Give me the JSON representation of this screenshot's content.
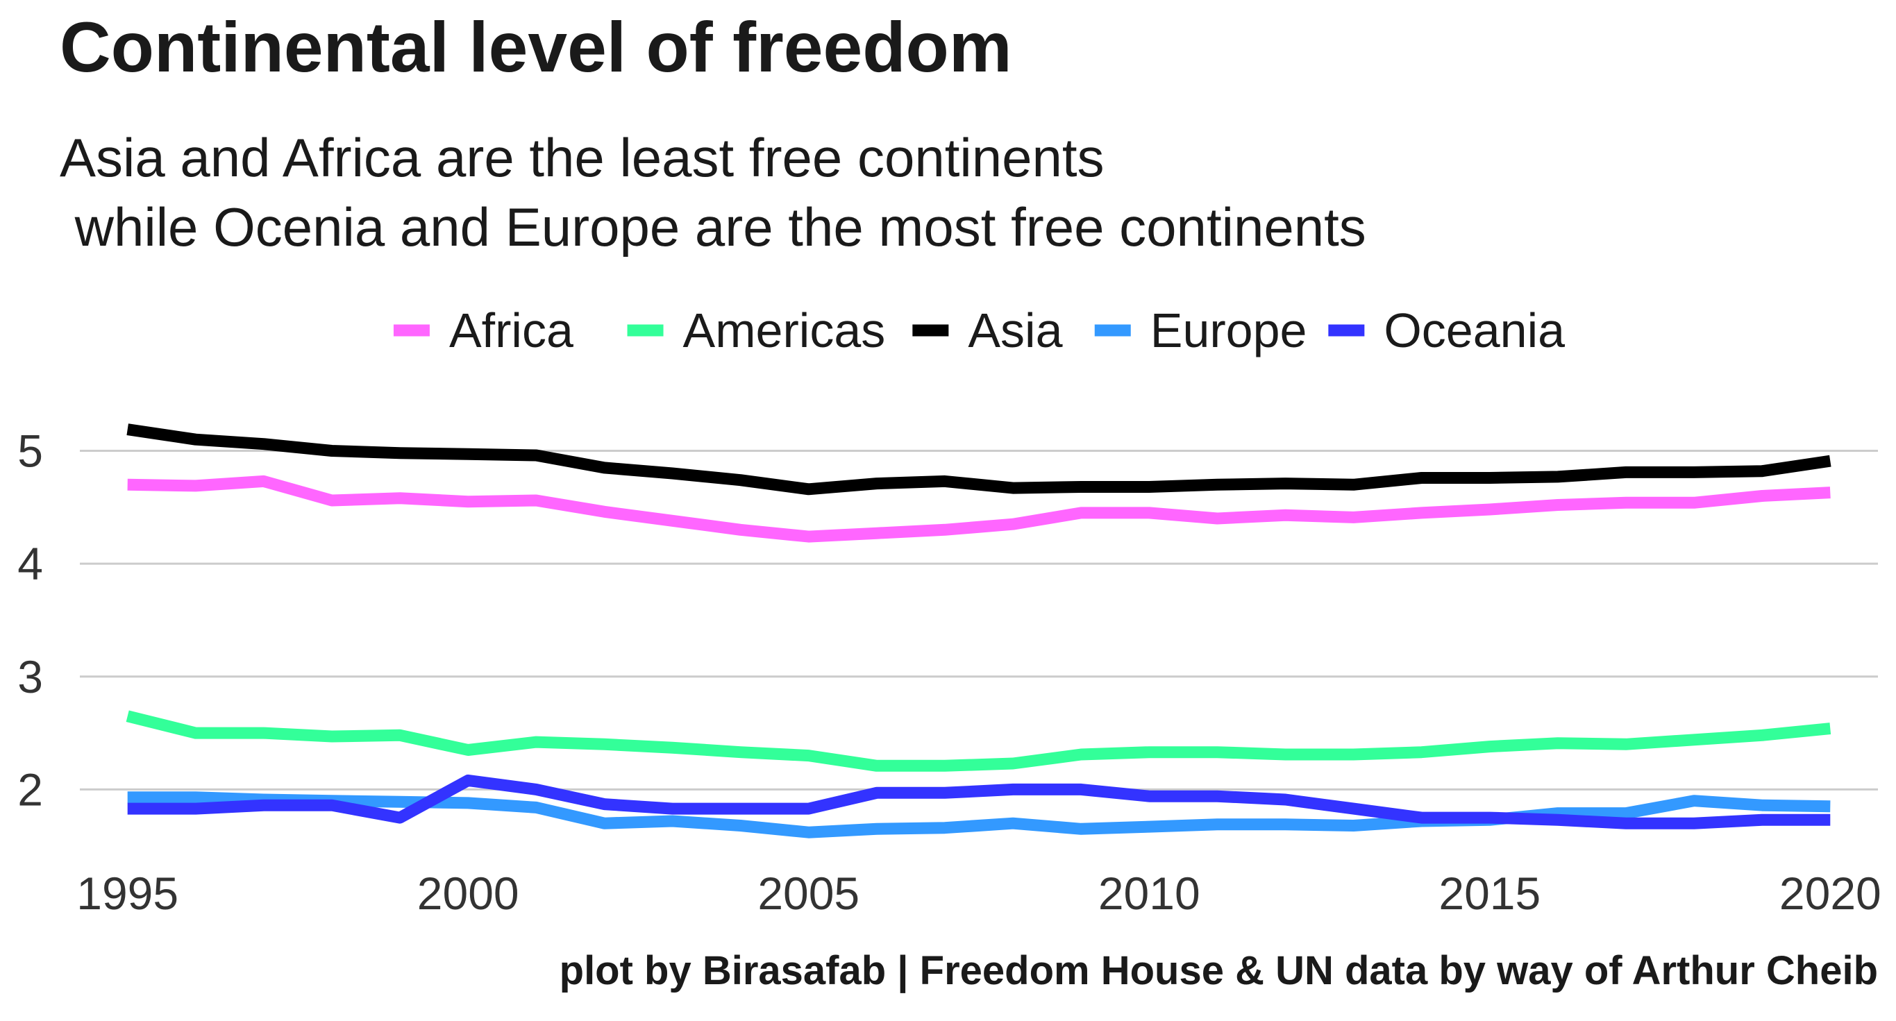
{
  "title": "Continental level of freedom",
  "subtitle": "Asia and Africa are the least free continents\n while Ocenia and Europe are the most free continents",
  "caption": "plot by Birasafab | Freedom House & UN data by way of Arthur Cheib",
  "chart_data": {
    "type": "line",
    "title": "Continental level of freedom",
    "xlabel": "",
    "ylabel": "",
    "xlim": [
      1994.3,
      2020.7
    ],
    "ylim": [
      1.4,
      5.55
    ],
    "x_ticks": [
      1995,
      2000,
      2005,
      2010,
      2015,
      2020
    ],
    "y_ticks": [
      2,
      3,
      4,
      5
    ],
    "grid": "horizontal major",
    "legend_position": "top",
    "x": [
      1995,
      1996,
      1997,
      1998,
      1999,
      2000,
      2001,
      2002,
      2003,
      2004,
      2005,
      2006,
      2007,
      2008,
      2009,
      2010,
      2011,
      2012,
      2013,
      2014,
      2015,
      2016,
      2017,
      2018,
      2019,
      2020
    ],
    "series": [
      {
        "name": "Africa",
        "color": "#FF66FF",
        "values": [
          4.7,
          4.69,
          4.73,
          4.56,
          4.58,
          4.55,
          4.56,
          4.46,
          4.38,
          4.3,
          4.24,
          4.27,
          4.3,
          4.35,
          4.45,
          4.45,
          4.4,
          4.43,
          4.41,
          4.45,
          4.48,
          4.52,
          4.54,
          4.54,
          4.6,
          4.63
        ]
      },
      {
        "name": "Americas",
        "color": "#33FF99",
        "values": [
          2.65,
          2.5,
          2.5,
          2.47,
          2.48,
          2.35,
          2.42,
          2.4,
          2.37,
          2.33,
          2.3,
          2.21,
          2.21,
          2.23,
          2.31,
          2.33,
          2.33,
          2.31,
          2.31,
          2.33,
          2.38,
          2.41,
          2.4,
          2.44,
          2.48,
          2.54
        ]
      },
      {
        "name": "Asia",
        "color": "#000000",
        "values": [
          5.19,
          5.1,
          5.06,
          5.0,
          4.98,
          4.97,
          4.96,
          4.85,
          4.8,
          4.74,
          4.66,
          4.71,
          4.73,
          4.67,
          4.68,
          4.68,
          4.7,
          4.71,
          4.7,
          4.76,
          4.76,
          4.77,
          4.81,
          4.81,
          4.82,
          4.91
        ]
      },
      {
        "name": "Europe",
        "color": "#3399FF",
        "values": [
          1.93,
          1.93,
          1.91,
          1.9,
          1.89,
          1.88,
          1.84,
          1.7,
          1.72,
          1.68,
          1.62,
          1.65,
          1.66,
          1.7,
          1.65,
          1.67,
          1.69,
          1.69,
          1.68,
          1.72,
          1.73,
          1.79,
          1.79,
          1.9,
          1.86,
          1.85
        ]
      },
      {
        "name": "Oceania",
        "color": "#3333FF",
        "values": [
          1.83,
          1.83,
          1.86,
          1.86,
          1.75,
          2.08,
          2.0,
          1.87,
          1.83,
          1.83,
          1.83,
          1.97,
          1.97,
          2.0,
          2.0,
          1.94,
          1.94,
          1.91,
          1.83,
          1.75,
          1.75,
          1.73,
          1.7,
          1.7,
          1.73,
          1.73
        ]
      }
    ]
  }
}
